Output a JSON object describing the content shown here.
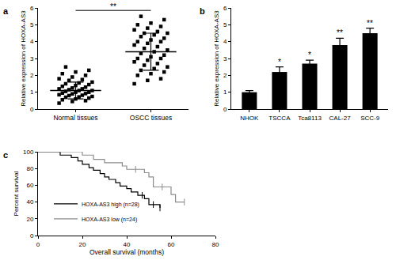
{
  "chart_data": [
    {
      "type": "scatter",
      "panel": "a",
      "ylabel": "Relative expression of HOXA-AS3",
      "categories": [
        "Normal tissues",
        "OSCC tissues"
      ],
      "values": [
        [
          0.35,
          0.45,
          0.5,
          0.55,
          0.6,
          0.65,
          0.7,
          0.72,
          0.75,
          0.8,
          0.82,
          0.85,
          0.9,
          0.92,
          0.95,
          1.0,
          1.0,
          1.05,
          1.1,
          1.1,
          1.15,
          1.2,
          1.2,
          1.25,
          1.3,
          1.35,
          1.4,
          1.45,
          1.5,
          1.55,
          1.6,
          1.7,
          1.75,
          1.8,
          1.9,
          2.0,
          2.1,
          2.2,
          2.3,
          2.5
        ],
        [
          1.5,
          1.7,
          1.8,
          2.0,
          2.1,
          2.2,
          2.3,
          2.4,
          2.5,
          2.6,
          2.7,
          2.8,
          2.9,
          3.0,
          3.0,
          3.1,
          3.2,
          3.3,
          3.4,
          3.5,
          3.6,
          3.7,
          3.8,
          3.9,
          4.0,
          4.0,
          4.1,
          4.2,
          4.3,
          4.4,
          4.5,
          4.5,
          4.6,
          4.7,
          4.8,
          4.9,
          5.0,
          5.1,
          5.3,
          5.5
        ]
      ],
      "mean": [
        1.1,
        3.4
      ],
      "sd": [
        0.5,
        1.1
      ],
      "significance": "**",
      "ylim": [
        0,
        6
      ],
      "yticks": [
        0,
        1,
        2,
        3,
        4,
        5,
        6
      ],
      "color": "#000000",
      "marker": "square",
      "grid": false
    },
    {
      "type": "bar",
      "panel": "b",
      "ylabel": "Relative expression of HOXA-AS3",
      "categories": [
        "NHOK",
        "TSCCA",
        "Tca8113",
        "CAL-27",
        "SCC-9"
      ],
      "values": [
        1.0,
        2.2,
        2.7,
        3.8,
        4.5
      ],
      "error": [
        0.1,
        0.3,
        0.2,
        0.4,
        0.3
      ],
      "significance": [
        null,
        "*",
        "*",
        "**",
        "**"
      ],
      "ylim": [
        0,
        6
      ],
      "yticks": [
        0,
        1,
        2,
        3,
        4,
        5,
        6
      ],
      "color": "#000000",
      "grid": false
    },
    {
      "type": "line",
      "panel": "c",
      "xlabel": "Overall survival (months)",
      "ylabel": "Percent survival",
      "series": [
        {
          "name": "HOXA-AS3 high (n=28)",
          "color": "#000000",
          "x": [
            0,
            10,
            15,
            18,
            20,
            23,
            25,
            28,
            30,
            32,
            35,
            37,
            40,
            42,
            45,
            48,
            50,
            55
          ],
          "values": [
            100,
            96,
            93,
            89,
            85,
            81,
            78,
            74,
            70,
            67,
            63,
            59,
            56,
            52,
            48,
            44,
            37,
            33
          ],
          "censored": [
            47,
            52,
            55
          ]
        },
        {
          "name": "HOXA-AS3 low (n=24)",
          "color": "#8c8c8c",
          "x": [
            0,
            20,
            25,
            30,
            33,
            38,
            40,
            45,
            48,
            50,
            52,
            55,
            60,
            62,
            66
          ],
          "values": [
            100,
            96,
            91,
            87,
            87,
            83,
            79,
            79,
            75,
            70,
            58,
            58,
            49,
            40,
            40
          ],
          "censored": [
            44,
            56,
            66
          ]
        }
      ],
      "xlim": [
        0,
        80
      ],
      "xticks": [
        0,
        20,
        40,
        60,
        80
      ],
      "ylim": [
        0,
        100
      ],
      "yticks": [
        0,
        20,
        40,
        60,
        80,
        100
      ],
      "legend": "lower left",
      "line_style": "step",
      "grid": false
    }
  ]
}
